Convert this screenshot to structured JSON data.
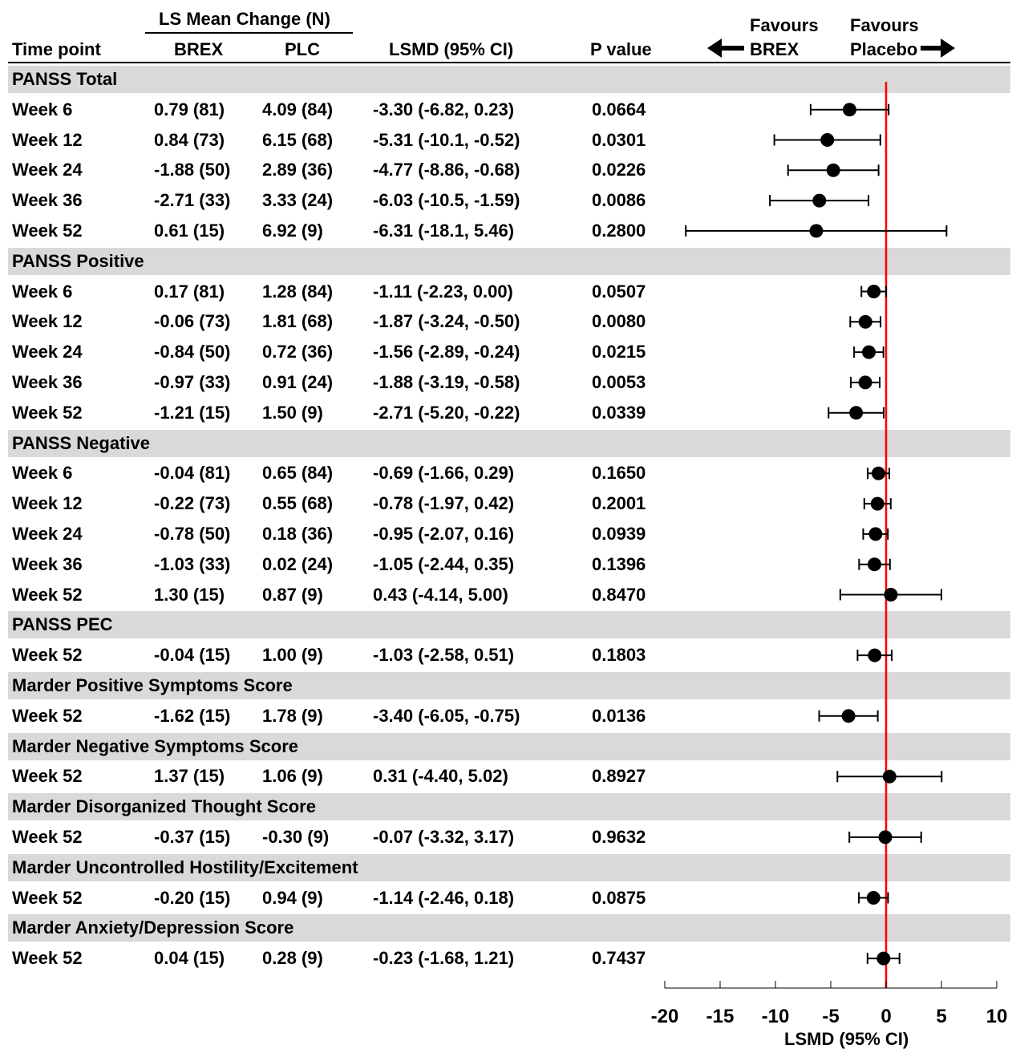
{
  "header": {
    "ls_mean_change": "LS Mean Change (N)",
    "time_point": "Time point",
    "brex": "BREX",
    "plc": "PLC",
    "lsmd": "LSMD (95% CI)",
    "p_value": "P value",
    "favours_brex_1": "Favours",
    "favours_brex_2": "BREX",
    "favours_placebo_1": "Favours",
    "favours_placebo_2": "Placebo"
  },
  "colors": {
    "band": "#d9d9d9",
    "reference_line": "#ff0000",
    "marker": "#000000"
  },
  "chart_data": {
    "type": "forest",
    "xlabel": "LSMD (95% CI)",
    "xlim": [
      -20,
      10
    ],
    "x_ticks": [
      -20,
      -15,
      -10,
      -5,
      0,
      5,
      10
    ],
    "reference_line_at": 0,
    "groups": [
      {
        "name": "PANSS Total",
        "rows": [
          {
            "time": "Week 6",
            "brex": "0.79 (81)",
            "plc": "4.09 (84)",
            "lsmd_text": "-3.30 (-6.82, 0.23)",
            "p": "0.0664",
            "est": -3.3,
            "lo": -6.82,
            "hi": 0.23
          },
          {
            "time": "Week 12",
            "brex": "0.84 (73)",
            "plc": "6.15 (68)",
            "lsmd_text": "-5.31 (-10.1, -0.52)",
            "p": "0.0301",
            "est": -5.31,
            "lo": -10.1,
            "hi": -0.52
          },
          {
            "time": "Week 24",
            "brex": "-1.88 (50)",
            "plc": "2.89 (36)",
            "lsmd_text": "-4.77 (-8.86, -0.68)",
            "p": "0.0226",
            "est": -4.77,
            "lo": -8.86,
            "hi": -0.68
          },
          {
            "time": "Week 36",
            "brex": "-2.71 (33)",
            "plc": "3.33 (24)",
            "lsmd_text": "-6.03 (-10.5, -1.59)",
            "p": "0.0086",
            "est": -6.03,
            "lo": -10.5,
            "hi": -1.59
          },
          {
            "time": "Week 52",
            "brex": "0.61 (15)",
            "plc": "6.92 (9)",
            "lsmd_text": "-6.31 (-18.1, 5.46)",
            "p": "0.2800",
            "est": -6.31,
            "lo": -18.1,
            "hi": 5.46
          }
        ]
      },
      {
        "name": "PANSS Positive",
        "rows": [
          {
            "time": "Week 6",
            "brex": "0.17 (81)",
            "plc": "1.28 (84)",
            "lsmd_text": "-1.11 (-2.23, 0.00)",
            "p": "0.0507",
            "est": -1.11,
            "lo": -2.23,
            "hi": 0.0
          },
          {
            "time": "Week 12",
            "brex": "-0.06 (73)",
            "plc": "1.81 (68)",
            "lsmd_text": "-1.87 (-3.24, -0.50)",
            "p": "0.0080",
            "est": -1.87,
            "lo": -3.24,
            "hi": -0.5
          },
          {
            "time": "Week 24",
            "brex": "-0.84 (50)",
            "plc": "0.72 (36)",
            "lsmd_text": "-1.56 (-2.89, -0.24)",
            "p": "0.0215",
            "est": -1.56,
            "lo": -2.89,
            "hi": -0.24
          },
          {
            "time": "Week 36",
            "brex": "-0.97 (33)",
            "plc": "0.91 (24)",
            "lsmd_text": "-1.88 (-3.19, -0.58)",
            "p": "0.0053",
            "est": -1.88,
            "lo": -3.19,
            "hi": -0.58
          },
          {
            "time": "Week 52",
            "brex": "-1.21 (15)",
            "plc": "1.50 (9)",
            "lsmd_text": "-2.71 (-5.20, -0.22)",
            "p": "0.0339",
            "est": -2.71,
            "lo": -5.2,
            "hi": -0.22
          }
        ]
      },
      {
        "name": "PANSS Negative",
        "rows": [
          {
            "time": "Week 6",
            "brex": "-0.04 (81)",
            "plc": "0.65 (84)",
            "lsmd_text": "-0.69 (-1.66, 0.29)",
            "p": "0.1650",
            "est": -0.69,
            "lo": -1.66,
            "hi": 0.29
          },
          {
            "time": "Week 12",
            "brex": "-0.22 (73)",
            "plc": "0.55 (68)",
            "lsmd_text": "-0.78 (-1.97, 0.42)",
            "p": "0.2001",
            "est": -0.78,
            "lo": -1.97,
            "hi": 0.42
          },
          {
            "time": "Week 24",
            "brex": "-0.78 (50)",
            "plc": "0.18 (36)",
            "lsmd_text": "-0.95 (-2.07, 0.16)",
            "p": "0.0939",
            "est": -0.95,
            "lo": -2.07,
            "hi": 0.16
          },
          {
            "time": "Week 36",
            "brex": "-1.03 (33)",
            "plc": "0.02 (24)",
            "lsmd_text": "-1.05 (-2.44, 0.35)",
            "p": "0.1396",
            "est": -1.05,
            "lo": -2.44,
            "hi": 0.35
          },
          {
            "time": "Week 52",
            "brex": "1.30 (15)",
            "plc": "0.87 (9)",
            "lsmd_text": "0.43 (-4.14, 5.00)",
            "p": "0.8470",
            "est": 0.43,
            "lo": -4.14,
            "hi": 5.0
          }
        ]
      },
      {
        "name": "PANSS PEC",
        "rows": [
          {
            "time": "Week 52",
            "brex": "-0.04 (15)",
            "plc": "1.00 (9)",
            "lsmd_text": "-1.03 (-2.58, 0.51)",
            "p": "0.1803",
            "est": -1.03,
            "lo": -2.58,
            "hi": 0.51
          }
        ]
      },
      {
        "name": "Marder Positive Symptoms Score",
        "rows": [
          {
            "time": "Week 52",
            "brex": "-1.62 (15)",
            "plc": "1.78 (9)",
            "lsmd_text": "-3.40 (-6.05, -0.75)",
            "p": "0.0136",
            "est": -3.4,
            "lo": -6.05,
            "hi": -0.75
          }
        ]
      },
      {
        "name": "Marder Negative Symptoms Score",
        "rows": [
          {
            "time": "Week 52",
            "brex": "1.37 (15)",
            "plc": "1.06 (9)",
            "lsmd_text": "0.31 (-4.40, 5.02)",
            "p": "0.8927",
            "est": 0.31,
            "lo": -4.4,
            "hi": 5.02
          }
        ]
      },
      {
        "name": "Marder Disorganized Thought Score",
        "rows": [
          {
            "time": "Week 52",
            "brex": "-0.37 (15)",
            "plc": "-0.30 (9)",
            "lsmd_text": "-0.07 (-3.32, 3.17)",
            "p": "0.9632",
            "est": -0.07,
            "lo": -3.32,
            "hi": 3.17
          }
        ]
      },
      {
        "name": "Marder Uncontrolled Hostility/Excitement",
        "rows": [
          {
            "time": "Week 52",
            "brex": "-0.20 (15)",
            "plc": "0.94 (9)",
            "lsmd_text": "-1.14 (-2.46, 0.18)",
            "p": "0.0875",
            "est": -1.14,
            "lo": -2.46,
            "hi": 0.18
          }
        ]
      },
      {
        "name": "Marder Anxiety/Depression Score",
        "rows": [
          {
            "time": "Week 52",
            "brex": "0.04 (15)",
            "plc": "0.28 (9)",
            "lsmd_text": "-0.23 (-1.68, 1.21)",
            "p": "0.7437",
            "est": -0.23,
            "lo": -1.68,
            "hi": 1.21
          }
        ]
      }
    ]
  }
}
